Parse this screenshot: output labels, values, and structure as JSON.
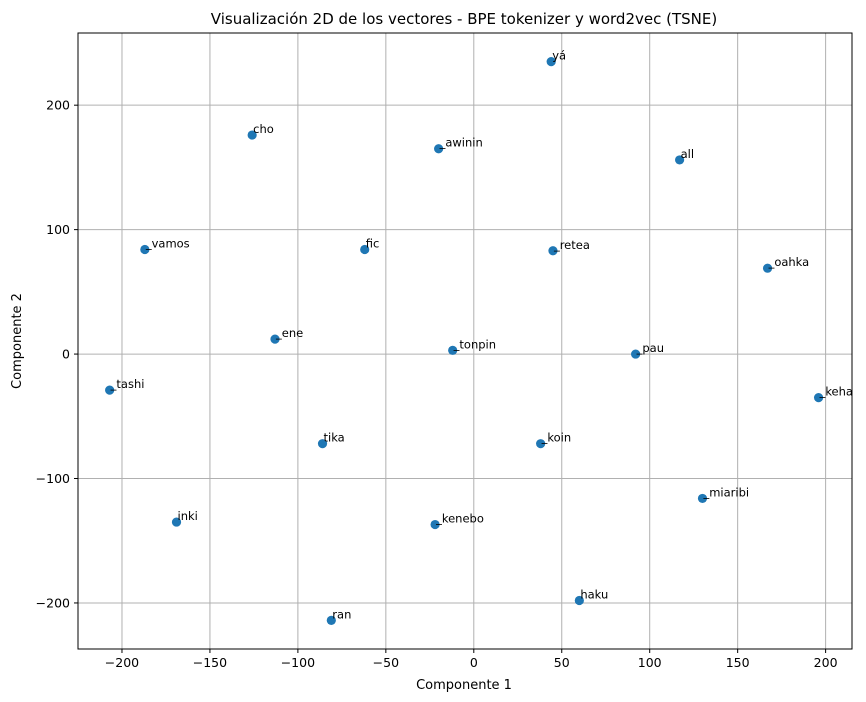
{
  "chart_data": {
    "type": "scatter",
    "title": "Visualización 2D de los vectores - BPE tokenizer y word2vec (TSNE)",
    "xlabel": "Componente 1",
    "ylabel": "Componente 2",
    "xlim": [
      -225,
      215
    ],
    "ylim": [
      -237,
      258
    ],
    "xticks": [
      -200,
      -150,
      -100,
      -50,
      0,
      50,
      100,
      150,
      200
    ],
    "yticks": [
      -200,
      -100,
      0,
      100,
      200
    ],
    "xtick_labels": [
      "−200",
      "−150",
      "−100",
      "−50",
      "0",
      "50",
      "100",
      "150",
      "200"
    ],
    "ytick_labels": [
      "−200",
      "−100",
      "0",
      "100",
      "200"
    ],
    "grid": true,
    "marker_color": "#1f77b4",
    "points": [
      {
        "label": "yá",
        "x": 44,
        "y": 235
      },
      {
        "label": "cho",
        "x": -126,
        "y": 176
      },
      {
        "label": "_awinin",
        "x": -20,
        "y": 165
      },
      {
        "label": "all",
        "x": 117,
        "y": 156
      },
      {
        "label": "_vamos",
        "x": -187,
        "y": 84
      },
      {
        "label": "fic",
        "x": -62,
        "y": 84
      },
      {
        "label": "_retea",
        "x": 45,
        "y": 83
      },
      {
        "label": "_oahka",
        "x": 167,
        "y": 69
      },
      {
        "label": "_ene",
        "x": -113,
        "y": 12
      },
      {
        "label": "_tonpin",
        "x": -12,
        "y": 3
      },
      {
        "label": "_pau",
        "x": 92,
        "y": 0
      },
      {
        "label": "_tashi",
        "x": -207,
        "y": -29
      },
      {
        "label": "_keha",
        "x": 196,
        "y": -35
      },
      {
        "label": "tika",
        "x": -86,
        "y": -72
      },
      {
        "label": "_koin",
        "x": 38,
        "y": -72
      },
      {
        "label": "_miaribi",
        "x": 130,
        "y": -116
      },
      {
        "label": "inki",
        "x": -169,
        "y": -135
      },
      {
        "label": "_kenebo",
        "x": -22,
        "y": -137
      },
      {
        "label": "haku",
        "x": 60,
        "y": -198
      },
      {
        "label": "ran",
        "x": -81,
        "y": -214
      }
    ]
  }
}
